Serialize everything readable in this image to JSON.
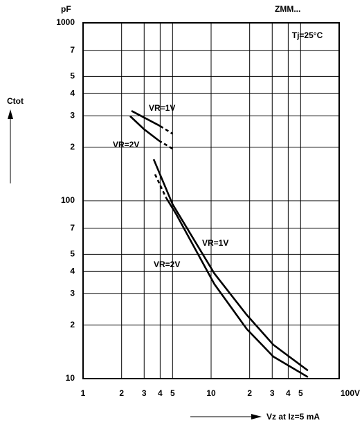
{
  "chart_data": {
    "type": "line",
    "title": "ZMM...",
    "y_unit": "pF",
    "ylabel": "Ctot",
    "xlabel": "Vz at Iz=5 mA",
    "annotation": "Tj=25°C",
    "xlog": true,
    "ylog": true,
    "grid": true,
    "color": "#000000",
    "xlim": [
      1,
      100
    ],
    "ylim": [
      10,
      1000
    ],
    "xticks": [
      1,
      2,
      3,
      4,
      5,
      10,
      {
        "value": 20,
        "label": "2"
      },
      {
        "value": 30,
        "label": "3"
      },
      {
        "value": 40,
        "label": "4"
      },
      {
        "value": 50,
        "label": "5"
      },
      {
        "value": 100,
        "label": "100V"
      }
    ],
    "yticks": [
      10,
      {
        "value": 20,
        "label": "2"
      },
      {
        "value": 30,
        "label": "3"
      },
      {
        "value": 40,
        "label": "4"
      },
      {
        "value": 50,
        "label": "5"
      },
      {
        "value": 70,
        "label": "7"
      },
      100,
      {
        "value": 200,
        "label": "2"
      },
      {
        "value": 300,
        "label": "3"
      },
      {
        "value": 400,
        "label": "4"
      },
      {
        "value": 500,
        "label": "5"
      },
      {
        "value": 700,
        "label": "7"
      },
      1000
    ],
    "series": [
      {
        "name": "VR=1V",
        "segments": [
          {
            "line": "solid",
            "x": [
              2.39,
              4
            ],
            "values": [
              320,
              263
            ]
          },
          {
            "line": "dashed",
            "x": [
              4,
              5
            ],
            "values": [
              263,
              238
            ]
          }
        ]
      },
      {
        "name": "VR=2V",
        "segments": [
          {
            "line": "solid",
            "x": [
              2.33,
              3,
              3.9
            ],
            "values": [
              299,
              252,
              218
            ]
          },
          {
            "line": "dashed",
            "x": [
              3.9,
              5
            ],
            "values": [
              218,
              196
            ]
          }
        ]
      },
      {
        "name": "VR=1V",
        "segments": [
          {
            "line": "solid",
            "x": [
              3.56,
              5,
              10.6,
              19,
              30.6,
              57
            ],
            "values": [
              171,
              95.6,
              39,
              22.8,
              15.5,
              11.1
            ]
          }
        ]
      },
      {
        "name": "VR=2V",
        "segments": [
          {
            "line": "dashed",
            "x": [
              3.65,
              4.45
            ],
            "values": [
              140.6,
              104
            ]
          },
          {
            "line": "solid",
            "x": [
              4.45,
              5.36,
              10.6,
              19,
              30.6,
              57
            ],
            "values": [
              104,
              83.6,
              34,
              19,
              13.3,
              10.2
            ]
          }
        ]
      }
    ]
  }
}
